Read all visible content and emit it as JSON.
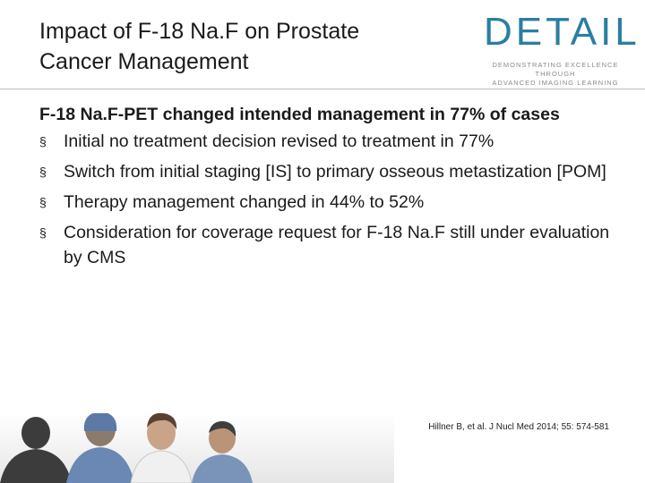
{
  "slide": {
    "title_lines": [
      "Impact of F-18 Na.F on Prostate",
      "Cancer Management"
    ],
    "logo": {
      "wordmark": "DETAIL",
      "tagline_lines": [
        "DEMONSTRATING EXCELLENCE THROUGH",
        "ADVANCED IMAGING LEARNING"
      ],
      "color": "#2b7ea1"
    },
    "lead": "F-18 Na.F-PET changed intended management in 77% of cases",
    "bullet_marker": "§",
    "bullets": [
      "Initial no treatment decision revised to treatment in 77%",
      "Switch from initial staging [IS] to primary osseous metastization [POM]",
      "Therapy management changed in 44% to 52%",
      "Consideration for coverage request for F-18 Na.F still under evaluation by CMS"
    ],
    "citation": "Hillner B, et al. J Nucl Med 2014; 55: 574-581",
    "image": "medical-team-photo"
  }
}
